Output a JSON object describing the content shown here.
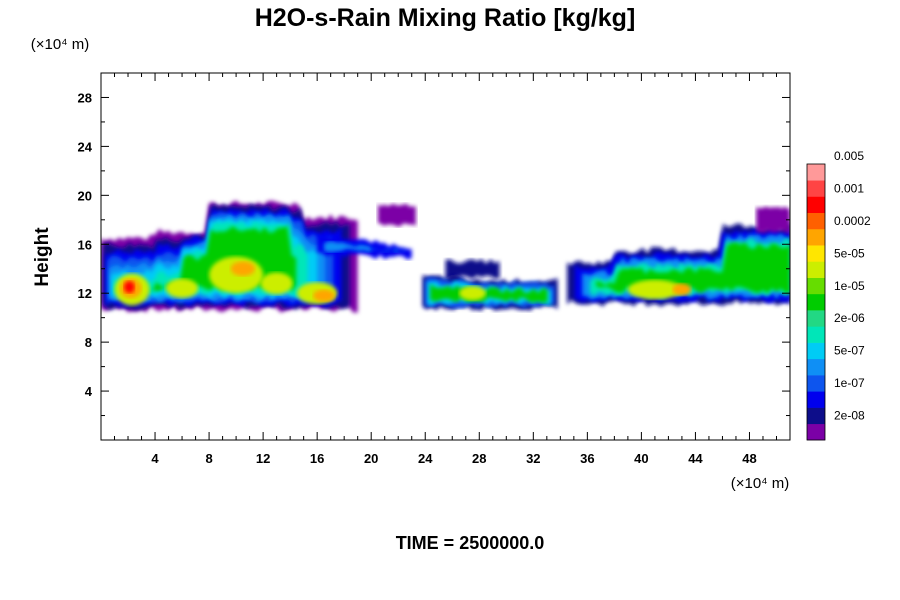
{
  "chart_data": {
    "type": "heatmap",
    "title": "H2O-s-Rain Mixing Ratio [kg/kg]",
    "ylabel": "Height",
    "y_unit": "(×10⁴ m)",
    "x_unit": "(×10⁴ m)",
    "footer": "TIME = 2500000.0",
    "xlim": [
      0,
      51
    ],
    "ylim": [
      0,
      30
    ],
    "x_ticks": [
      4,
      8,
      12,
      16,
      20,
      24,
      28,
      32,
      36,
      40,
      44,
      48
    ],
    "y_ticks": [
      4,
      8,
      12,
      16,
      20,
      24,
      28
    ],
    "colorbar": {
      "colors": [
        "#7b00a6",
        "#0d0d8a",
        "#0000ee",
        "#0d55ee",
        "#0f8ff5",
        "#00ccf5",
        "#00e6b8",
        "#22d884",
        "#00cc00",
        "#66dd00",
        "#ccee00",
        "#ffe600",
        "#ffa500",
        "#ff6000",
        "#ff0000",
        "#ff4444",
        "#ff9999"
      ],
      "labels": [
        "2e-08",
        "1e-07",
        "5e-07",
        "2e-06",
        "1e-05",
        "5e-05",
        "0.0002",
        "0.001",
        "0.005"
      ]
    },
    "regions": [
      {
        "x": [
          0,
          19
        ],
        "y": [
          10.5,
          19.5
        ],
        "peak": "5e-05 to 0.005"
      },
      {
        "x": [
          24,
          34
        ],
        "y": [
          10.5,
          14
        ],
        "peak": "5e-05 to 0.0002"
      },
      {
        "x": [
          34,
          51
        ],
        "y": [
          11,
          19
        ],
        "peak": "5e-05 to 0.001"
      }
    ]
  }
}
